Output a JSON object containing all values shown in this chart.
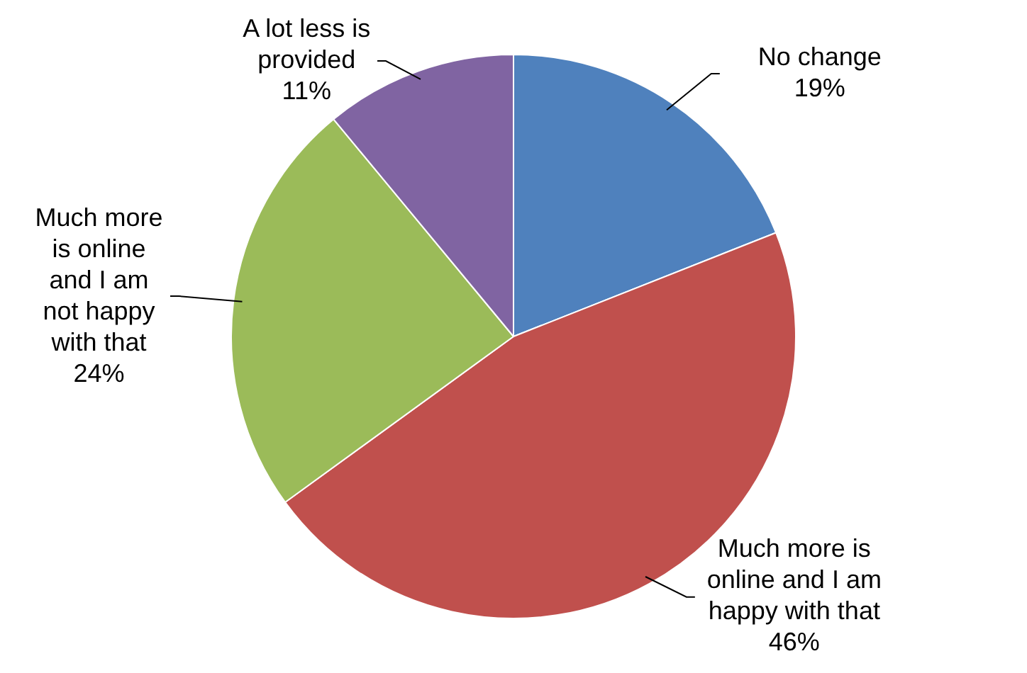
{
  "chart_data": {
    "type": "pie",
    "categories": [
      "No change",
      "Much more is online and I am happy with that",
      "Much more is online and I am not happy with that",
      "A lot less is provided"
    ],
    "values": [
      19,
      46,
      24,
      11
    ],
    "colors": [
      "#4f81bd",
      "#c0504d",
      "#9bbb59",
      "#8064a2"
    ],
    "value_labels": [
      "19%",
      "46%",
      "24%",
      "11%"
    ],
    "legend": false
  }
}
